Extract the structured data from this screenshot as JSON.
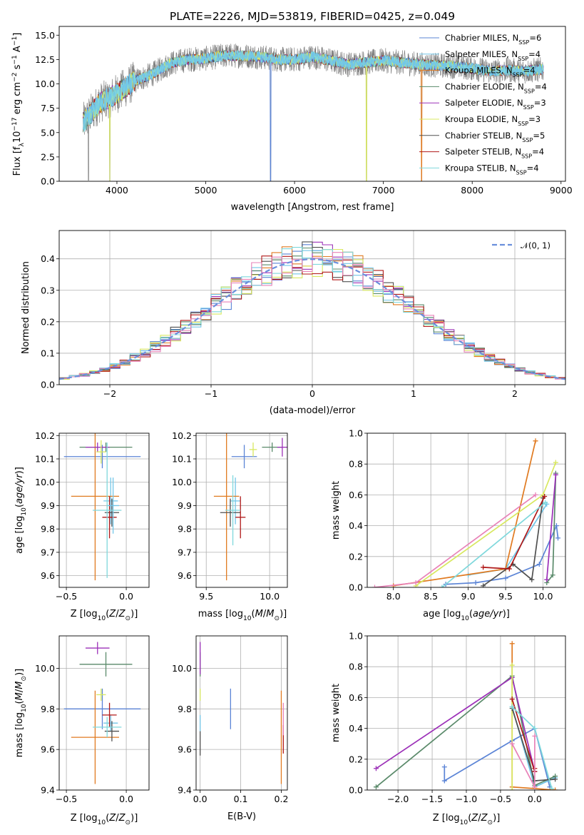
{
  "title": "PLATE=2226, MJD=53819, FIBERID=0425, z=0.049",
  "models": [
    {
      "label": "Chabrier MILES, N",
      "sub": "SSP",
      "tail": "=6",
      "color": "#5b84d6"
    },
    {
      "label": "Salpeter MILES, N",
      "sub": "SSP",
      "tail": "=4",
      "color": "#72c6e8"
    },
    {
      "label": "Kroupa MILES, N",
      "sub": "SSP",
      "tail": "=4",
      "color": "#e07a20"
    },
    {
      "label": "Chabrier ELODIE, N",
      "sub": "SSP",
      "tail": "=4",
      "color": "#5a8a6a"
    },
    {
      "label": "Salpeter ELODIE, N",
      "sub": "SSP",
      "tail": "=3",
      "color": "#9c30b8"
    },
    {
      "label": "Kroupa ELODIE, N",
      "sub": "SSP",
      "tail": "=3",
      "color": "#d8e860"
    },
    {
      "label": "Chabrier STELIB, N",
      "sub": "SSP",
      "tail": "=5",
      "color": "#505050"
    },
    {
      "label": "Salpeter STELIB, N",
      "sub": "SSP",
      "tail": "=4",
      "color": "#b01818"
    },
    {
      "label": "Kroupa STELIB, N",
      "sub": "SSP",
      "tail": "=4",
      "color": "#7fd8dc"
    }
  ],
  "chart_data": [
    {
      "type": "line",
      "id": "spectrum",
      "title": "PLATE=2226, MJD=53819, FIBERID=0425, z=0.049",
      "xlabel": "wavelength [Angstrom, rest frame]",
      "ylabel": "Flux [f",
      "ylabel_sub": "λ",
      "ylabel_tail": "10",
      "ylabel_sup": "−17",
      "ylabel_end": " erg cm",
      "ylabel_sup2": "−2",
      "ylabel_end2": " s",
      "ylabel_sup3": "−1",
      "ylabel_end3": " A",
      "ylabel_sup4": "−1",
      "ylabel_close": "]",
      "xlim": [
        3350,
        9050
      ],
      "ylim": [
        0,
        15.9
      ],
      "xticks": [
        4000,
        5000,
        6000,
        7000,
        8000,
        9000
      ],
      "yticks": [
        0.0,
        2.5,
        5.0,
        7.5,
        10.0,
        12.5,
        15.0
      ],
      "ytick_labels": [
        "0.0",
        "2.5",
        "5.0",
        "7.5",
        "10.0",
        "12.5",
        "15.0"
      ],
      "legend": "right",
      "data_range": [
        3620,
        8800
      ],
      "continuum": [
        [
          3620,
          6.0
        ],
        [
          3800,
          8.0
        ],
        [
          4000,
          9.0
        ],
        [
          4200,
          10.3
        ],
        [
          4400,
          11.0
        ],
        [
          4600,
          12.1
        ],
        [
          4800,
          12.5
        ],
        [
          5000,
          12.6
        ],
        [
          5200,
          12.9
        ],
        [
          5400,
          12.9
        ],
        [
          5600,
          12.8
        ],
        [
          5800,
          12.5
        ],
        [
          6000,
          12.5
        ],
        [
          6200,
          12.8
        ],
        [
          6400,
          12.4
        ],
        [
          6600,
          12.0
        ],
        [
          6800,
          12.2
        ],
        [
          7000,
          12.4
        ],
        [
          7200,
          12.2
        ],
        [
          7400,
          12.0
        ],
        [
          7600,
          11.9
        ],
        [
          7800,
          11.8
        ],
        [
          8000,
          11.6
        ],
        [
          8200,
          11.3
        ],
        [
          8400,
          11.4
        ],
        [
          8600,
          11.3
        ],
        [
          8800,
          11.5
        ]
      ],
      "data_spikes": [
        [
          3680,
          0.1
        ],
        [
          3920,
          0.0
        ],
        [
          5730,
          0.0
        ],
        [
          6810,
          0.0
        ],
        [
          7430,
          0.0
        ]
      ]
    },
    {
      "type": "bar",
      "id": "residuals",
      "xlabel": "(data-model)/error",
      "ylabel": "Normed distribution",
      "xlim": [
        -2.5,
        2.5
      ],
      "ylim": [
        0,
        0.49
      ],
      "xticks": [
        -2,
        -1,
        0,
        1,
        2
      ],
      "xtick_labels": [
        "−2",
        "−1",
        "0",
        "1",
        "2"
      ],
      "yticks": [
        0.0,
        0.1,
        0.2,
        0.3,
        0.4
      ],
      "ytick_labels": [
        "0.0",
        "0.1",
        "0.2",
        "0.3",
        "0.4"
      ],
      "bin_width": 0.1,
      "legend_entry": "𝒩(0, 1)",
      "legend": "top-right",
      "grid": true
    },
    {
      "type": "scatter",
      "id": "age-vs-Z",
      "xlabel": "Z [log",
      "ylabel": "age  [log",
      "xlim": [
        -0.56,
        0.19
      ],
      "ylim": [
        9.55,
        10.21
      ],
      "xticks": [
        -0.5,
        0.0
      ],
      "xtick_labels": [
        "−0.5",
        "0.0"
      ],
      "yticks": [
        9.6,
        9.7,
        9.8,
        9.9,
        10.0,
        10.1,
        10.2
      ],
      "ytick_labels": [
        "9.6",
        "9.7",
        "9.8",
        "9.9",
        "10.0",
        "10.1",
        "10.2"
      ],
      "points": [
        {
          "x": -0.2,
          "xerr": 0.32,
          "y": 10.11,
          "yerr": 0.05,
          "c": 0
        },
        {
          "x": -0.13,
          "xerr": 0.06,
          "y": 9.92,
          "yerr": 0.1,
          "c": 1
        },
        {
          "x": -0.26,
          "xerr": 0.2,
          "y": 9.94,
          "yerr": 0.36,
          "c": 2
        },
        {
          "x": -0.17,
          "xerr": 0.22,
          "y": 10.15,
          "yerr": 0.02,
          "c": 3
        },
        {
          "x": -0.24,
          "xerr": 0.1,
          "y": 10.15,
          "yerr": 0.02,
          "c": 4
        },
        {
          "x": -0.21,
          "xerr": 0.04,
          "y": 10.13,
          "yerr": 0.05,
          "c": 5
        },
        {
          "x": -0.12,
          "xerr": 0.06,
          "y": 9.87,
          "yerr": 0.06,
          "c": 6
        },
        {
          "x": -0.14,
          "xerr": 0.06,
          "y": 9.85,
          "yerr": 0.09,
          "c": 7
        },
        {
          "x": -0.11,
          "xerr": 0.05,
          "y": 9.9,
          "yerr": 0.12,
          "c": 1
        },
        {
          "x": -0.16,
          "xerr": 0.12,
          "y": 9.88,
          "yerr": 0.29,
          "c": 8
        }
      ]
    },
    {
      "type": "scatter",
      "id": "age-vs-mass",
      "xlabel": "mass [log",
      "xlim": [
        9.42,
        10.14
      ],
      "ylim": [
        9.55,
        10.21
      ],
      "xticks": [
        9.5,
        10.0
      ],
      "xtick_labels": [
        "9.5",
        "10.0"
      ],
      "yticks": [
        9.6,
        9.7,
        9.8,
        9.9,
        10.0,
        10.1,
        10.2
      ],
      "ytick_labels": [
        "9.6",
        "9.7",
        "9.8",
        "9.9",
        "10.0",
        "10.1",
        "10.2"
      ],
      "points": [
        {
          "x": 9.8,
          "xerr": 0.1,
          "y": 10.11,
          "yerr": 0.05,
          "c": 0
        },
        {
          "x": 9.73,
          "xerr": 0.04,
          "y": 9.92,
          "yerr": 0.1,
          "c": 1
        },
        {
          "x": 9.66,
          "xerr": 0.1,
          "y": 9.94,
          "yerr": 0.36,
          "c": 2
        },
        {
          "x": 10.02,
          "xerr": 0.08,
          "y": 10.15,
          "yerr": 0.02,
          "c": 3
        },
        {
          "x": 10.1,
          "xerr": 0.04,
          "y": 10.15,
          "yerr": 0.04,
          "c": 4
        },
        {
          "x": 9.87,
          "xerr": 0.03,
          "y": 10.14,
          "yerr": 0.03,
          "c": 5
        },
        {
          "x": 9.69,
          "xerr": 0.08,
          "y": 9.87,
          "yerr": 0.06,
          "c": 6
        },
        {
          "x": 9.77,
          "xerr": 0.04,
          "y": 9.85,
          "yerr": 0.09,
          "c": 7
        },
        {
          "x": 9.71,
          "xerr": 0.06,
          "y": 9.88,
          "yerr": 0.15,
          "c": 8
        }
      ]
    },
    {
      "type": "line",
      "id": "mass-weight-vs-age",
      "xlabel": "age  [log",
      "ylabel": "mass weight",
      "xlim": [
        7.65,
        10.3
      ],
      "ylim": [
        0,
        1.0
      ],
      "xticks": [
        8.0,
        8.5,
        9.0,
        9.5,
        10.0
      ],
      "xtick_labels": [
        "8.0",
        "8.5",
        "9.0",
        "9.5",
        "10.0"
      ],
      "yticks": [
        0.0,
        0.2,
        0.4,
        0.6,
        0.8,
        1.0
      ],
      "ytick_labels": [
        "0.0",
        "0.2",
        "0.4",
        "0.6",
        "0.8",
        "1.0"
      ],
      "grid": true,
      "series": [
        {
          "c": 0,
          "pts": [
            [
              8.7,
              0.02
            ],
            [
              9.1,
              0.03
            ],
            [
              9.5,
              0.06
            ],
            [
              9.95,
              0.15
            ],
            [
              10.18,
              0.4
            ],
            [
              10.2,
              0.32
            ]
          ]
        },
        {
          "c": 1,
          "pts": [
            [
              9.0,
              0.08
            ],
            [
              9.5,
              0.12
            ],
            [
              10.05,
              0.54
            ]
          ]
        },
        {
          "c": 2,
          "pts": [
            [
              8.0,
              0.01
            ],
            [
              9.5,
              0.12
            ],
            [
              9.9,
              0.95
            ]
          ]
        },
        {
          "c": 3,
          "pts": [
            [
              10.05,
              0.03
            ],
            [
              10.13,
              0.08
            ],
            [
              10.17,
              0.74
            ]
          ]
        },
        {
          "c": 4,
          "pts": [
            [
              10.05,
              0.05
            ],
            [
              10.17,
              0.73
            ]
          ]
        },
        {
          "c": 5,
          "pts": [
            [
              8.3,
              0.01
            ],
            [
              10.0,
              0.6
            ],
            [
              10.17,
              0.81
            ]
          ]
        },
        {
          "c": 6,
          "pts": [
            [
              9.2,
              0.01
            ],
            [
              9.6,
              0.15
            ],
            [
              9.85,
              0.05
            ],
            [
              10.0,
              0.58
            ]
          ]
        },
        {
          "c": 7,
          "pts": [
            [
              9.2,
              0.13
            ],
            [
              9.55,
              0.12
            ],
            [
              10.02,
              0.59
            ]
          ]
        },
        {
          "c": 8,
          "pts": [
            [
              8.65,
              0.0
            ],
            [
              10.03,
              0.55
            ]
          ]
        },
        {
          "c": 9,
          "pts": [
            [
              7.75,
              0.0
            ],
            [
              8.3,
              0.03
            ],
            [
              9.9,
              0.6
            ]
          ]
        }
      ]
    },
    {
      "type": "scatter",
      "id": "mass-vs-Z",
      "xlabel": "Z [log",
      "ylabel": "mass [log",
      "xlim": [
        -0.56,
        0.19
      ],
      "ylim": [
        9.4,
        10.16
      ],
      "xticks": [
        -0.5,
        0.0
      ],
      "xtick_labels": [
        "−0.5",
        "0.0"
      ],
      "yticks": [
        9.4,
        9.6,
        9.8,
        10.0
      ],
      "ytick_labels": [
        "9.4",
        "9.6",
        "9.8",
        "10.0"
      ],
      "points": [
        {
          "x": -0.2,
          "xerr": 0.32,
          "y": 9.8,
          "yerr": 0.1,
          "c": 0
        },
        {
          "x": -0.13,
          "xerr": 0.06,
          "y": 9.73,
          "yerr": 0.04,
          "c": 1
        },
        {
          "x": -0.26,
          "xerr": 0.2,
          "y": 9.66,
          "yerr": 0.23,
          "c": 2
        },
        {
          "x": -0.17,
          "xerr": 0.22,
          "y": 10.02,
          "yerr": 0.06,
          "c": 3
        },
        {
          "x": -0.24,
          "xerr": 0.1,
          "y": 10.1,
          "yerr": 0.03,
          "c": 4
        },
        {
          "x": -0.21,
          "xerr": 0.04,
          "y": 9.87,
          "yerr": 0.03,
          "c": 5
        },
        {
          "x": -0.12,
          "xerr": 0.06,
          "y": 9.69,
          "yerr": 0.05,
          "c": 6
        },
        {
          "x": -0.14,
          "xerr": 0.06,
          "y": 9.77,
          "yerr": 0.06,
          "c": 7
        },
        {
          "x": -0.16,
          "xerr": 0.12,
          "y": 9.71,
          "yerr": 0.05,
          "c": 8
        }
      ]
    },
    {
      "type": "scatter",
      "id": "mass-vs-EBV",
      "xlabel": "E(B-V)",
      "xlim": [
        -0.01,
        0.215
      ],
      "ylim": [
        9.4,
        10.16
      ],
      "xticks": [
        0.0,
        0.1,
        0.2
      ],
      "xtick_labels": [
        "0.0",
        "0.1",
        "0.2"
      ],
      "yticks": [
        9.4,
        9.6,
        9.8,
        10.0
      ],
      "ytick_labels": [
        "9.4",
        "9.6",
        "9.8",
        "10.0"
      ],
      "points": [
        {
          "x": 0.075,
          "xerr": 0.0,
          "y": 9.8,
          "yerr": 0.1,
          "c": 0
        },
        {
          "x": 0.0,
          "xerr": 0.0,
          "y": 9.73,
          "yerr": 0.04,
          "c": 1
        },
        {
          "x": 0.2,
          "xerr": 0.0,
          "y": 9.66,
          "yerr": 0.23,
          "c": 2
        },
        {
          "x": 0.0,
          "xerr": 0.0,
          "y": 10.02,
          "yerr": 0.06,
          "c": 3
        },
        {
          "x": 0.0,
          "xerr": 0.0,
          "y": 10.05,
          "yerr": 0.08,
          "c": 4
        },
        {
          "x": 0.0,
          "xerr": 0.0,
          "y": 9.87,
          "yerr": 0.03,
          "c": 5
        },
        {
          "x": 0.0,
          "xerr": 0.0,
          "y": 9.63,
          "yerr": 0.06,
          "c": 6
        },
        {
          "x": 0.205,
          "xerr": 0.0,
          "y": 9.65,
          "yerr": 0.07,
          "c": 7
        },
        {
          "x": 0.205,
          "xerr": 0.0,
          "y": 9.75,
          "yerr": 0.08,
          "c": 9
        }
      ]
    },
    {
      "type": "line",
      "id": "mass-weight-vs-Z",
      "xlabel": "Z [log",
      "ylabel": "mass weight",
      "xlim": [
        -2.45,
        0.45
      ],
      "ylim": [
        0,
        1.0
      ],
      "xticks": [
        -2.0,
        -1.5,
        -1.0,
        -0.5,
        0.0
      ],
      "xtick_labels": [
        "−2.0",
        "−1.5",
        "−1.0",
        "−0.5",
        "0.0"
      ],
      "yticks": [
        0.0,
        0.2,
        0.4,
        0.6,
        0.8,
        1.0
      ],
      "ytick_labels": [
        "0.0",
        "0.2",
        "0.4",
        "0.6",
        "0.8",
        "1.0"
      ],
      "grid": true,
      "series": [
        {
          "c": 0,
          "pts": [
            [
              -1.32,
              0.15
            ],
            [
              -1.32,
              0.06
            ],
            [
              -0.33,
              0.32
            ],
            [
              0.0,
              0.4
            ],
            [
              0.22,
              0.02
            ]
          ]
        },
        {
          "c": 1,
          "pts": [
            [
              -0.33,
              0.54
            ],
            [
              0.0,
              0.02
            ],
            [
              0.3,
              0.08
            ]
          ]
        },
        {
          "c": 2,
          "pts": [
            [
              -0.33,
              0.95
            ],
            [
              -0.33,
              0.02
            ],
            [
              0.3,
              0.0
            ]
          ]
        },
        {
          "c": 3,
          "pts": [
            [
              -2.32,
              0.02
            ],
            [
              -0.33,
              0.74
            ],
            [
              0.0,
              0.03
            ],
            [
              0.3,
              0.09
            ]
          ]
        },
        {
          "c": 4,
          "pts": [
            [
              -2.32,
              0.14
            ],
            [
              -0.33,
              0.73
            ],
            [
              0.0,
              0.12
            ]
          ]
        },
        {
          "c": 5,
          "pts": [
            [
              -0.33,
              0.81
            ],
            [
              -0.33,
              0.0
            ]
          ]
        },
        {
          "c": 6,
          "pts": [
            [
              -0.33,
              0.53
            ],
            [
              0.0,
              0.06
            ],
            [
              0.3,
              0.07
            ]
          ]
        },
        {
          "c": 7,
          "pts": [
            [
              -0.33,
              0.59
            ],
            [
              0.0,
              0.12
            ],
            [
              0.0,
              0.14
            ]
          ]
        },
        {
          "c": 8,
          "pts": [
            [
              -0.33,
              0.54
            ],
            [
              0.0,
              0.4
            ],
            [
              0.25,
              0.01
            ]
          ]
        },
        {
          "c": 9,
          "pts": [
            [
              -0.33,
              0.3
            ],
            [
              0.0,
              0.02
            ],
            [
              0.0,
              0.35
            ]
          ]
        }
      ]
    }
  ]
}
